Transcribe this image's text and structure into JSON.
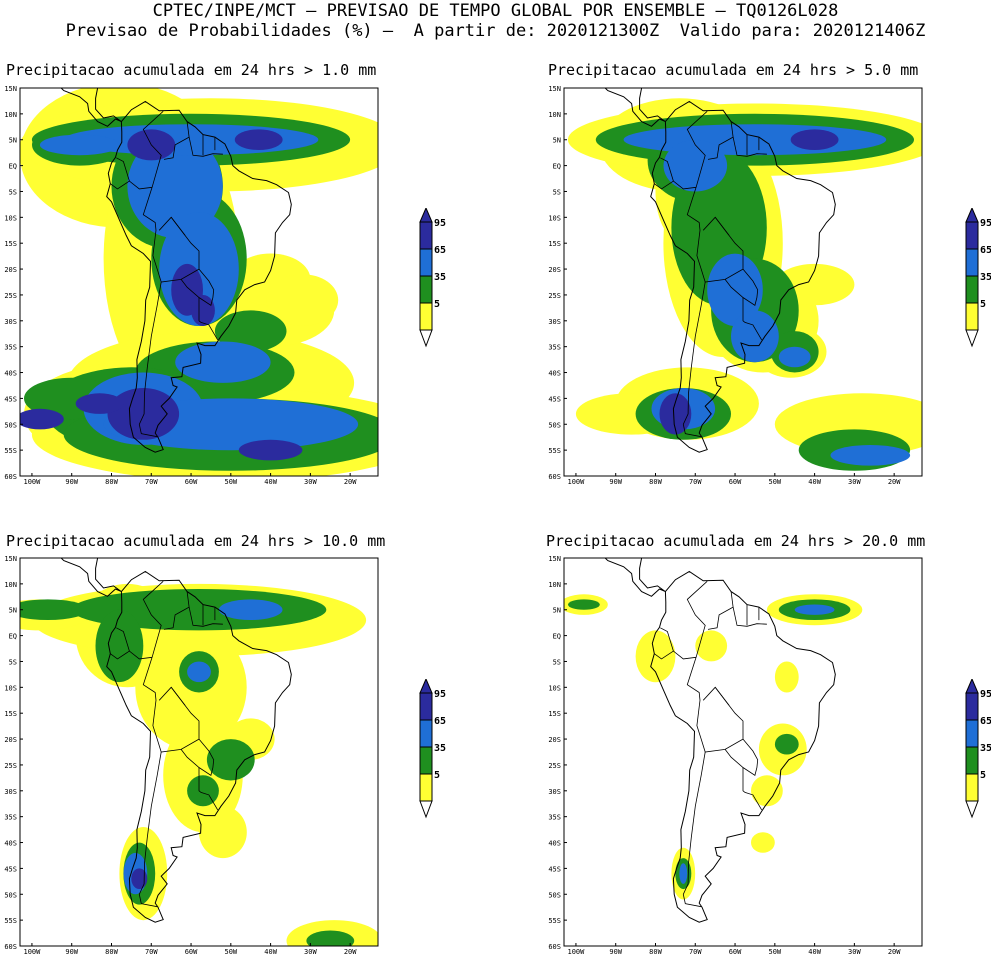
{
  "header": {
    "line1": "CPTEC/INPE/MCT – PREVISAO DE TEMPO GLOBAL POR ENSEMBLE – TQ0126L028",
    "line2": "Previsao de Probabilidades (%) –  A partir de: 2020121300Z  Valido para: 2020121406Z"
  },
  "axes": {
    "lat_labels": [
      "15N",
      "10N",
      "5N",
      "EQ",
      "5S",
      "10S",
      "15S",
      "20S",
      "25S",
      "30S",
      "35S",
      "40S",
      "45S",
      "50S",
      "55S",
      "60S"
    ],
    "lon_labels": [
      "100W",
      "90W",
      "80W",
      "70W",
      "60W",
      "50W",
      "40W",
      "30W",
      "20W"
    ]
  },
  "legend": {
    "levels": [
      "95",
      "65",
      "35",
      "5"
    ],
    "colors": [
      "#2b2b9e",
      "#1f6fd6",
      "#1f8f1f",
      "#ffff33"
    ]
  },
  "panels": [
    {
      "title": "Precipitacao acumulada em 24 hrs > 1.0 mm",
      "threshold": "1.0"
    },
    {
      "title": "Precipitacao acumulada em 24 hrs > 5.0 mm",
      "threshold": "5.0"
    },
    {
      "title": "Precipitacao acumulada em 24 hrs > 10.0 mm",
      "threshold": "10.0"
    },
    {
      "title": "Precipitacao acumulada em 24 hrs > 20.0 mm",
      "threshold": "20.0"
    }
  ]
}
